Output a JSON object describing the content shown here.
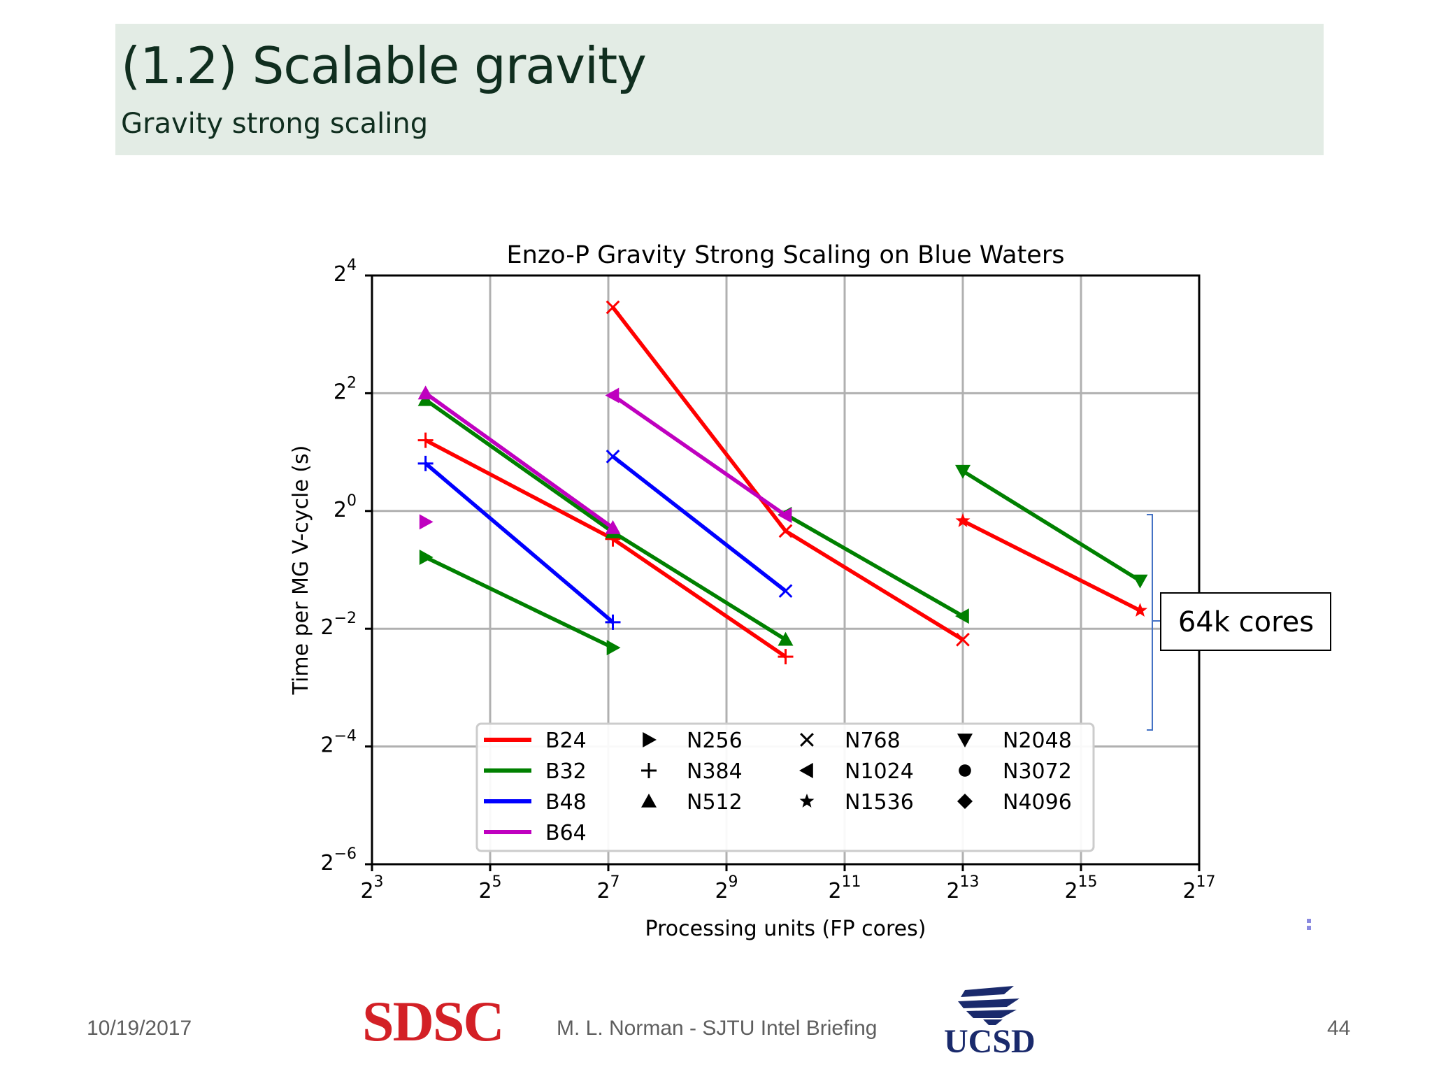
{
  "slide": {
    "title": "(1.2) Scalable gravity",
    "subtitle": "Gravity strong scaling"
  },
  "footer": {
    "date": "10/19/2017",
    "author": "M. L. Norman - SJTU Intel Briefing",
    "page": "44",
    "logo_left": "SDSC",
    "logo_right": "UCSD"
  },
  "callout": {
    "label": "64k cores"
  },
  "colors": {
    "B24": "#ff0000",
    "B32": "#008000",
    "B48": "#0000ff",
    "B64": "#bf00bf",
    "header_bg": "#e3ece5",
    "bracket": "#4472c4"
  },
  "chart_data": {
    "type": "line",
    "title": "Enzo-P Gravity Strong Scaling on Blue Waters",
    "xlabel": "Processing units (FP cores)",
    "ylabel": "Time per MG V-cycle (s)",
    "x_scale": "log2",
    "y_scale": "log2",
    "xlim_exp": [
      3,
      17
    ],
    "ylim_exp": [
      -6,
      4
    ],
    "x_ticks": [
      3,
      5,
      7,
      9,
      11,
      13,
      15,
      17
    ],
    "y_ticks": [
      -6,
      -4,
      -2,
      0,
      2,
      4
    ],
    "grid": true,
    "legend_position": "lower-center",
    "legend_color_entries": [
      "B24",
      "B32",
      "B48",
      "B64"
    ],
    "legend_marker_entries": [
      {
        "label": "N256",
        "marker": "triangle-right"
      },
      {
        "label": "N384",
        "marker": "plus"
      },
      {
        "label": "N512",
        "marker": "triangle-up"
      },
      {
        "label": "N768",
        "marker": "x"
      },
      {
        "label": "N1024",
        "marker": "triangle-left"
      },
      {
        "label": "N1536",
        "marker": "star"
      },
      {
        "label": "N2048",
        "marker": "triangle-down"
      },
      {
        "label": "N3072",
        "marker": "circle"
      },
      {
        "label": "N4096",
        "marker": "diamond"
      }
    ],
    "series": [
      {
        "color_key": "B24",
        "size": "N384",
        "marker": "plus",
        "points": [
          [
            15,
            2.3
          ],
          [
            135,
            0.72
          ],
          [
            1024,
            0.18
          ]
        ]
      },
      {
        "color_key": "B24",
        "size": "N768",
        "marker": "x",
        "points": [
          [
            135,
            11.0
          ],
          [
            1024,
            0.79
          ],
          [
            8192,
            0.22
          ]
        ]
      },
      {
        "color_key": "B24",
        "size": "N1536",
        "marker": "star",
        "points": [
          [
            8192,
            0.89
          ],
          [
            65536,
            0.31
          ]
        ]
      },
      {
        "color_key": "B32",
        "size": "N256",
        "marker": "triangle-right",
        "points": [
          [
            15,
            0.58
          ],
          [
            135,
            0.2
          ]
        ]
      },
      {
        "color_key": "B32",
        "size": "N512",
        "marker": "triangle-up",
        "points": [
          [
            15,
            3.7
          ],
          [
            135,
            0.78
          ],
          [
            1024,
            0.22
          ]
        ]
      },
      {
        "color_key": "B32",
        "size": "N1024",
        "marker": "triangle-left",
        "points": [
          [
            1024,
            0.96
          ],
          [
            8192,
            0.29
          ]
        ]
      },
      {
        "color_key": "B32",
        "size": "N2048",
        "marker": "triangle-down",
        "points": [
          [
            8192,
            1.6
          ],
          [
            65536,
            0.44
          ]
        ]
      },
      {
        "color_key": "B48",
        "size": "N384",
        "marker": "plus",
        "points": [
          [
            15,
            1.75
          ],
          [
            135,
            0.27
          ]
        ]
      },
      {
        "color_key": "B48",
        "size": "N768",
        "marker": "x",
        "points": [
          [
            135,
            1.9
          ],
          [
            1024,
            0.39
          ]
        ]
      },
      {
        "color_key": "B64",
        "size": "N256",
        "marker": "triangle-right",
        "points": [
          [
            15,
            0.88
          ]
        ]
      },
      {
        "color_key": "B64",
        "size": "N512",
        "marker": "triangle-up",
        "points": [
          [
            15,
            4.0
          ],
          [
            135,
            0.82
          ]
        ]
      },
      {
        "color_key": "B64",
        "size": "N1024",
        "marker": "triangle-left",
        "points": [
          [
            135,
            3.9
          ],
          [
            1024,
            0.95
          ]
        ]
      }
    ]
  }
}
